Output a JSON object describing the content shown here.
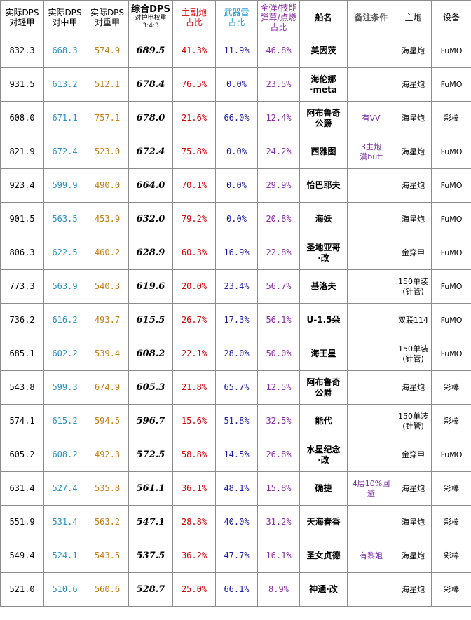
{
  "headers": {
    "light": "实际DPS\n对轻甲",
    "medium": "实际DPS\n对中甲",
    "heavy": "实际DPS\n对重甲",
    "combined_title": "综合DPS",
    "combined_sub1": "对护甲权重",
    "combined_sub2": "3:4:3",
    "main_gun": "主副炮\n占比",
    "torpedo": "武器雷\n占比",
    "other": "全弹/技能\n弹幕/点燃\n占比",
    "ship": "船名",
    "note": "备注条件",
    "gun": "主炮",
    "equip": "设备"
  },
  "rows": [
    {
      "light": "832.3",
      "medium": "668.3",
      "heavy": "574.9",
      "combined": "689.5",
      "main": "41.3%",
      "torp": "11.9%",
      "other": "46.8%",
      "ship": "美因茨",
      "note": "",
      "gun": "海星炮",
      "equip": "FuMO"
    },
    {
      "light": "931.5",
      "medium": "613.2",
      "heavy": "512.1",
      "combined": "678.4",
      "main": "76.5%",
      "torp": "0.0%",
      "other": "23.5%",
      "ship": "海伦娜\n·meta",
      "note": "",
      "gun": "海星炮",
      "equip": "FuMO"
    },
    {
      "light": "608.0",
      "medium": "671.1",
      "heavy": "757.1",
      "combined": "678.0",
      "main": "21.6%",
      "torp": "66.0%",
      "other": "12.4%",
      "ship": "阿布鲁奇\n公爵",
      "note": "有VV",
      "gun": "海星炮",
      "equip": "彩棒"
    },
    {
      "light": "821.9",
      "medium": "672.4",
      "heavy": "523.0",
      "combined": "672.4",
      "main": "75.8%",
      "torp": "0.0%",
      "other": "24.2%",
      "ship": "西雅图",
      "note": "3主炮\n满buff",
      "gun": "海星炮",
      "equip": "FuMO"
    },
    {
      "light": "923.4",
      "medium": "599.9",
      "heavy": "490.0",
      "combined": "664.0",
      "main": "70.1%",
      "torp": "0.0%",
      "other": "29.9%",
      "ship": "恰巴耶夫",
      "note": "",
      "gun": "海星炮",
      "equip": "FuMO"
    },
    {
      "light": "901.5",
      "medium": "563.5",
      "heavy": "453.9",
      "combined": "632.0",
      "main": "79.2%",
      "torp": "0.0%",
      "other": "20.8%",
      "ship": "海妖",
      "note": "",
      "gun": "海星炮",
      "equip": "FuMO"
    },
    {
      "light": "806.3",
      "medium": "622.5",
      "heavy": "460.2",
      "combined": "628.9",
      "main": "60.3%",
      "torp": "16.9%",
      "other": "22.8%",
      "ship": "圣地亚哥\n·改",
      "note": "",
      "gun": "金穿甲",
      "equip": "FuMO"
    },
    {
      "light": "773.3",
      "medium": "563.9",
      "heavy": "540.3",
      "combined": "619.6",
      "main": "20.0%",
      "torp": "23.4%",
      "other": "56.7%",
      "ship": "基洛夫",
      "note": "",
      "gun": "150单装\n(针管)",
      "equip": "FuMO"
    },
    {
      "light": "736.2",
      "medium": "616.2",
      "heavy": "493.7",
      "combined": "615.5",
      "main": "26.7%",
      "torp": "17.3%",
      "other": "56.1%",
      "ship": "U-1.5朵",
      "note": "",
      "gun": "双联114",
      "equip": "FuMO"
    },
    {
      "light": "685.1",
      "medium": "602.2",
      "heavy": "539.4",
      "combined": "608.2",
      "main": "22.1%",
      "torp": "28.0%",
      "other": "50.0%",
      "ship": "海王星",
      "note": "",
      "gun": "150单装\n(针管)",
      "equip": "FuMO"
    },
    {
      "light": "543.8",
      "medium": "599.3",
      "heavy": "674.9",
      "combined": "605.3",
      "main": "21.8%",
      "torp": "65.7%",
      "other": "12.5%",
      "ship": "阿布鲁奇\n公爵",
      "note": "",
      "gun": "海星炮",
      "equip": "彩棒"
    },
    {
      "light": "574.1",
      "medium": "615.2",
      "heavy": "594.5",
      "combined": "596.7",
      "main": "15.6%",
      "torp": "51.8%",
      "other": "32.5%",
      "ship": "能代",
      "note": "",
      "gun": "150单装\n(针管)",
      "equip": "彩棒"
    },
    {
      "light": "605.2",
      "medium": "608.2",
      "heavy": "492.3",
      "combined": "572.5",
      "main": "58.8%",
      "torp": "14.5%",
      "other": "26.8%",
      "ship": "水星纪念\n·改",
      "note": "",
      "gun": "金穿甲",
      "equip": "FuMO"
    },
    {
      "light": "631.4",
      "medium": "527.4",
      "heavy": "535.8",
      "combined": "561.1",
      "main": "36.1%",
      "torp": "48.1%",
      "other": "15.8%",
      "ship": "确捷",
      "note": "4层10%回\n避",
      "gun": "海星炮",
      "equip": "彩棒"
    },
    {
      "light": "551.9",
      "medium": "531.4",
      "heavy": "563.2",
      "combined": "547.1",
      "main": "28.8%",
      "torp": "40.0%",
      "other": "31.2%",
      "ship": "天海春香",
      "note": "",
      "gun": "海星炮",
      "equip": "彩棒"
    },
    {
      "light": "549.4",
      "medium": "524.1",
      "heavy": "543.5",
      "combined": "537.5",
      "main": "36.2%",
      "torp": "47.7%",
      "other": "16.1%",
      "ship": "圣女贞德",
      "note": "有黎姐",
      "gun": "海星炮",
      "equip": "彩棒"
    },
    {
      "light": "521.0",
      "medium": "510.6",
      "heavy": "560.6",
      "combined": "528.7",
      "main": "25.0%",
      "torp": "66.1%",
      "other": "8.9%",
      "ship": "神通·改",
      "note": "",
      "gun": "海星炮",
      "equip": "彩棒"
    }
  ]
}
